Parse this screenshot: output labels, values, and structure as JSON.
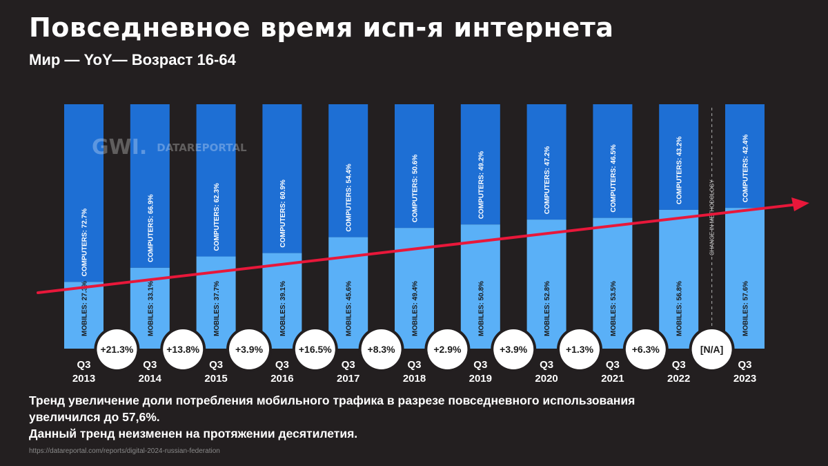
{
  "header": {
    "title": "Повседневное время исп-я интернета",
    "subtitle": "Мир — YoY— Возраст 16-64"
  },
  "brand": {
    "gwi": "GWI.",
    "datareportal": "DATAREPORTAL"
  },
  "chart_data": {
    "type": "bar",
    "stacked": true,
    "categories": [
      {
        "q": "Q3",
        "year": "2013"
      },
      {
        "q": "Q3",
        "year": "2014"
      },
      {
        "q": "Q3",
        "year": "2015"
      },
      {
        "q": "Q3",
        "year": "2016"
      },
      {
        "q": "Q3",
        "year": "2017"
      },
      {
        "q": "Q3",
        "year": "2018"
      },
      {
        "q": "Q3",
        "year": "2019"
      },
      {
        "q": "Q3",
        "year": "2020"
      },
      {
        "q": "Q3",
        "year": "2021"
      },
      {
        "q": "Q3",
        "year": "2022"
      },
      {
        "q": "Q3",
        "year": "2023"
      }
    ],
    "series": [
      {
        "name": "MOBILES",
        "color": "#5ab0f7",
        "values": [
          27.3,
          33.1,
          37.7,
          39.1,
          45.6,
          49.4,
          50.8,
          52.8,
          53.5,
          56.8,
          57.6
        ],
        "labels": [
          "MOBILES: 27.3%",
          "MOBILES: 33.1%",
          "MOBILES: 37.7%",
          "MOBILES: 39.1%",
          "MOBILES: 45.6%",
          "MOBILES: 49.4%",
          "MOBILES: 50.8%",
          "MOBILES: 52.8%",
          "MOBILES: 53.5%",
          "MOBILES: 56.8%",
          "MOBILES: 57.6%"
        ]
      },
      {
        "name": "COMPUTERS",
        "color": "#1e6fd4",
        "values": [
          72.7,
          66.9,
          62.3,
          60.9,
          54.4,
          50.6,
          49.2,
          47.2,
          46.5,
          43.2,
          42.4
        ],
        "labels": [
          "COMPUTERS: 72.7%",
          "COMPUTERS: 66.9%",
          "COMPUTERS: 62.3%",
          "COMPUTERS: 60.9%",
          "COMPUTERS: 54.4%",
          "COMPUTERS: 50.6%",
          "COMPUTERS: 49.2%",
          "COMPUTERS: 47.2%",
          "COMPUTERS: 46.5%",
          "COMPUTERS: 43.2%",
          "COMPUTERS: 42.4%"
        ]
      }
    ],
    "yoy_changes": [
      "+21.3%",
      "+13.8%",
      "+3.9%",
      "+16.5%",
      "+8.3%",
      "+2.9%",
      "+3.9%",
      "+1.3%",
      "+6.3%",
      "[N/A]"
    ],
    "methodology_note": "CHANGE IN METHODOLOGY",
    "trend_arrow_color": "#e8173a",
    "ylim": [
      0,
      100
    ]
  },
  "caption": {
    "line1": "Тренд увеличение доли потребления мобильного трафика в разрезе повседневного использования",
    "line2": "увеличился до 57,6%.",
    "line3": "Данный тренд неизменен на протяжении десятилетия."
  },
  "source": "https://datareportal.com/reports/digital-2024-russian-federation"
}
